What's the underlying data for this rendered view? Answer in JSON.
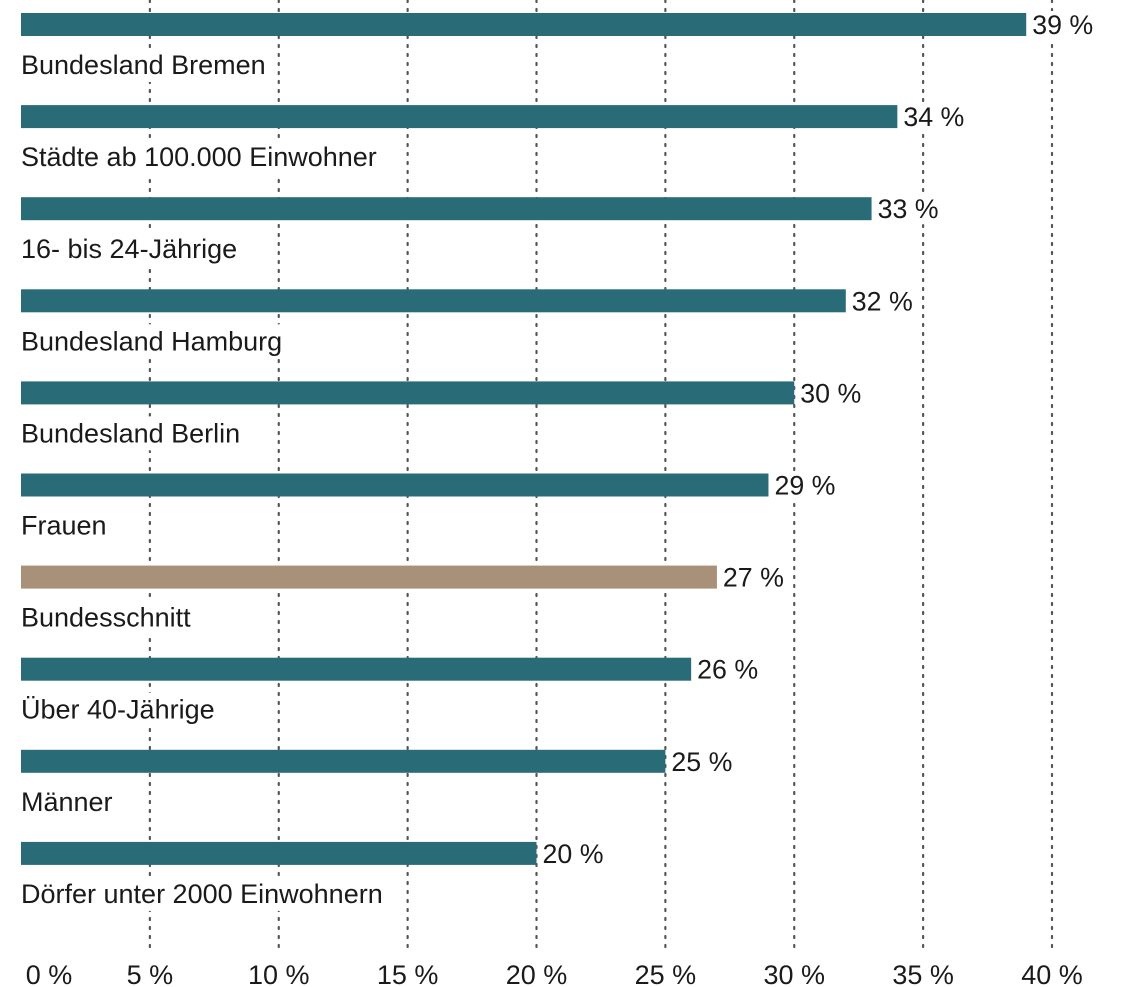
{
  "chart_data": {
    "type": "bar",
    "orientation": "horizontal",
    "categories": [
      "Bundesland Bremen",
      "Städte ab 100.000 Einwohner",
      "16- bis 24-Jährige",
      "Bundesland Hamburg",
      "Bundesland Berlin",
      "Frauen",
      "Bundesschnitt",
      "Über 40-Jährige",
      "Männer",
      "Dörfer unter 2000 Einwohnern"
    ],
    "values": [
      39,
      34,
      33,
      32,
      30,
      29,
      27,
      26,
      25,
      20
    ],
    "value_labels": [
      "39 %",
      "34 %",
      "33 %",
      "32 %",
      "30 %",
      "29 %",
      "27 %",
      "26 %",
      "25 %",
      "20 %"
    ],
    "highlight_index": 6,
    "xlim": [
      0,
      40
    ],
    "xticks": [
      0,
      5,
      10,
      15,
      20,
      25,
      30,
      35,
      40
    ],
    "xtick_labels": [
      "0 %",
      "5 %",
      "10 %",
      "15 %",
      "20 %",
      "25 %",
      "30 %",
      "35 %",
      "40 %"
    ],
    "grid": "vertical dotted",
    "colors": {
      "bar": "#2a6b78",
      "highlight": "#a89079",
      "grid": "#555555",
      "text": "#1a1a1a"
    }
  }
}
